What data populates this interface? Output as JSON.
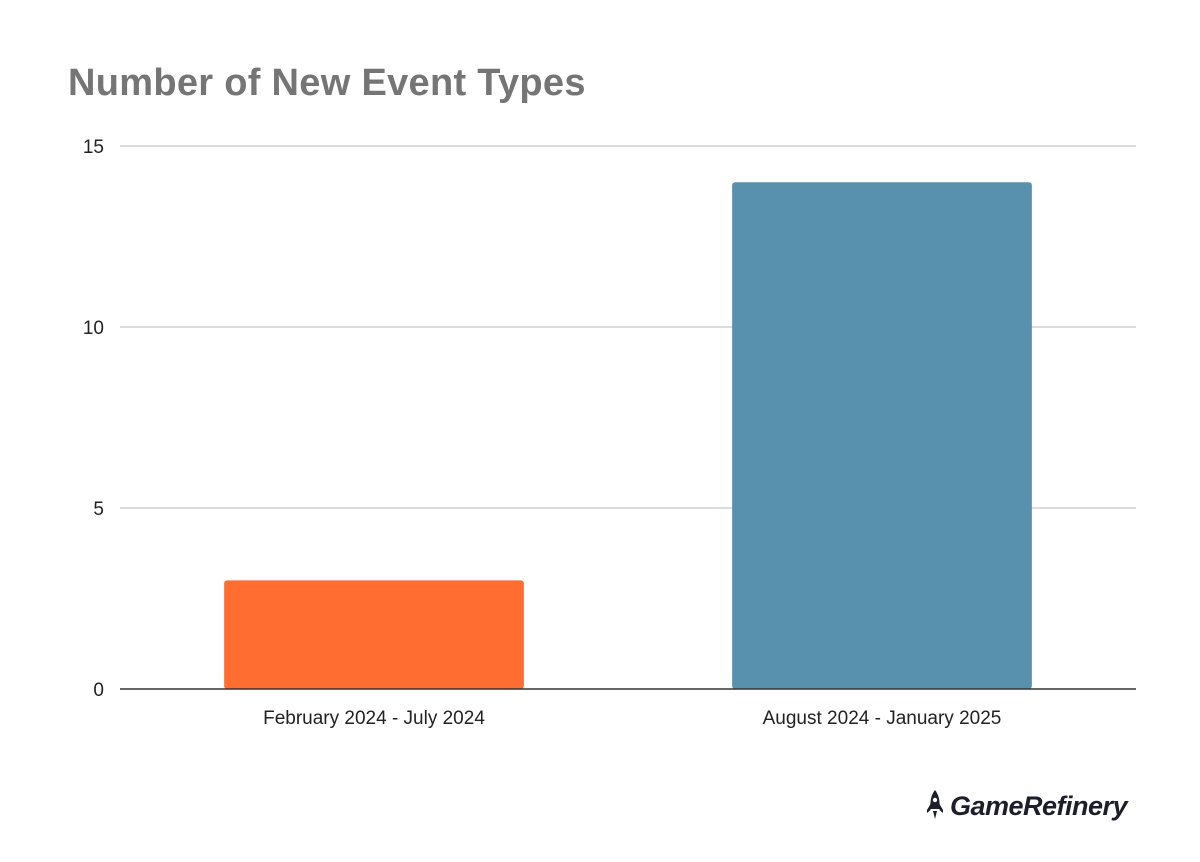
{
  "chart_data": {
    "type": "bar",
    "title": "Number of New Event Types",
    "categories": [
      "February 2024 - July 2024",
      "August 2024 - January 2025"
    ],
    "values": [
      3,
      14
    ],
    "bar_colors": [
      "#ff6d31",
      "#5891ae"
    ],
    "ylim": [
      0,
      15
    ],
    "yticks": [
      "0",
      "5",
      "10",
      "15"
    ],
    "grid": true,
    "xlabel": "",
    "ylabel": ""
  },
  "colors": {
    "title": "#757575",
    "gridline": "#d0d0d0",
    "axis": "#333333"
  },
  "brand": {
    "name": "GameRefinery",
    "icon": "rocket-icon"
  }
}
